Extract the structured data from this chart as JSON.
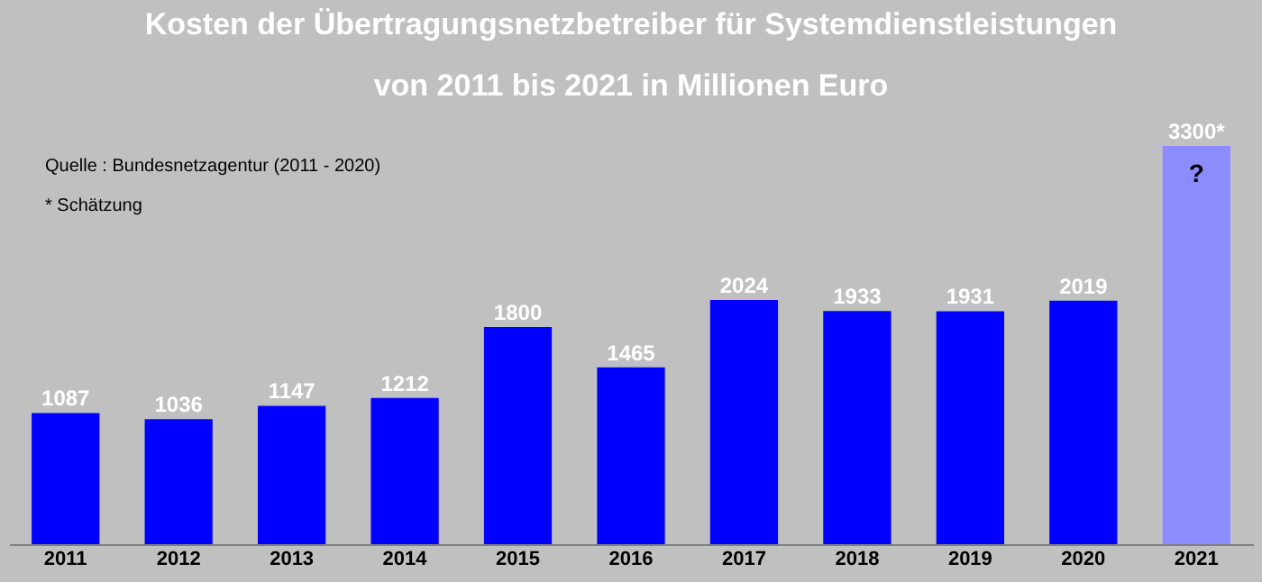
{
  "chart_data": {
    "type": "bar",
    "title": [
      "Kosten der Übertragungsnetzbetreiber für Systemdienstleistungen",
      "von 2011 bis 2021 in  Millionen Euro"
    ],
    "categories": [
      "2011",
      "2012",
      "2013",
      "2014",
      "2015",
      "2016",
      "2017",
      "2018",
      "2019",
      "2020",
      "2021"
    ],
    "values": [
      1087,
      1036,
      1147,
      1212,
      1800,
      1465,
      2024,
      1933,
      1931,
      2019,
      3300
    ],
    "colors": [
      "#0000ff",
      "#0000ff",
      "#0000ff",
      "#0000ff",
      "#0000ff",
      "#0000ff",
      "#0000ff",
      "#0000ff",
      "#0000ff",
      "#0000ff",
      "#8c8cff"
    ],
    "value_labels": [
      "1087",
      "1036",
      "1147",
      "1212",
      "1800",
      "1465",
      "2024",
      "1933",
      "1931",
      "2019",
      "3300*"
    ],
    "annotations": [
      "Quelle : Bundesnetzagentur (2011 - 2020)",
      "* Schätzung",
      "?"
    ],
    "grid": false
  }
}
